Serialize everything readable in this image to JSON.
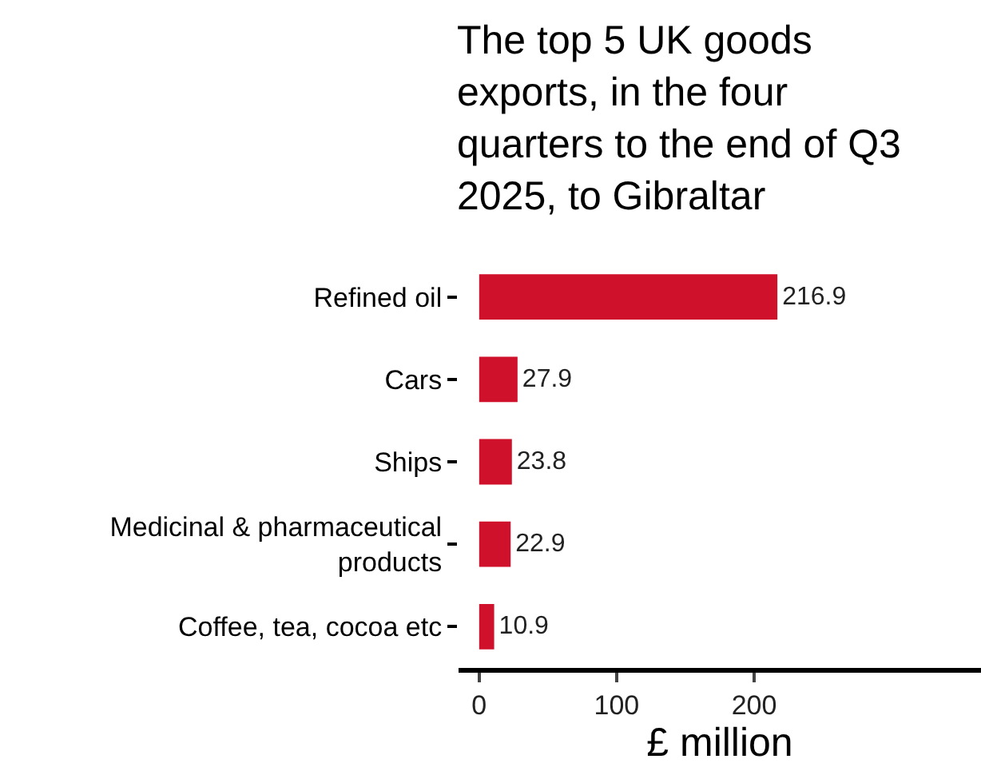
{
  "chart_data": {
    "type": "bar",
    "orientation": "horizontal",
    "title": "The top 5 UK goods exports, in the four quarters to the end of Q3 2025, to Gibraltar",
    "categories": [
      "Refined oil",
      "Cars",
      "Ships",
      "Medicinal & pharmaceutical products",
      "Coffee, tea, cocoa etc"
    ],
    "values": [
      216.9,
      27.9,
      23.8,
      22.9,
      10.9
    ],
    "color": "#d0112b",
    "data_labels": true,
    "xlabel": "£ million",
    "xlim": [
      -15,
      365
    ],
    "xticks": [
      0,
      100,
      200
    ],
    "legend": false
  }
}
